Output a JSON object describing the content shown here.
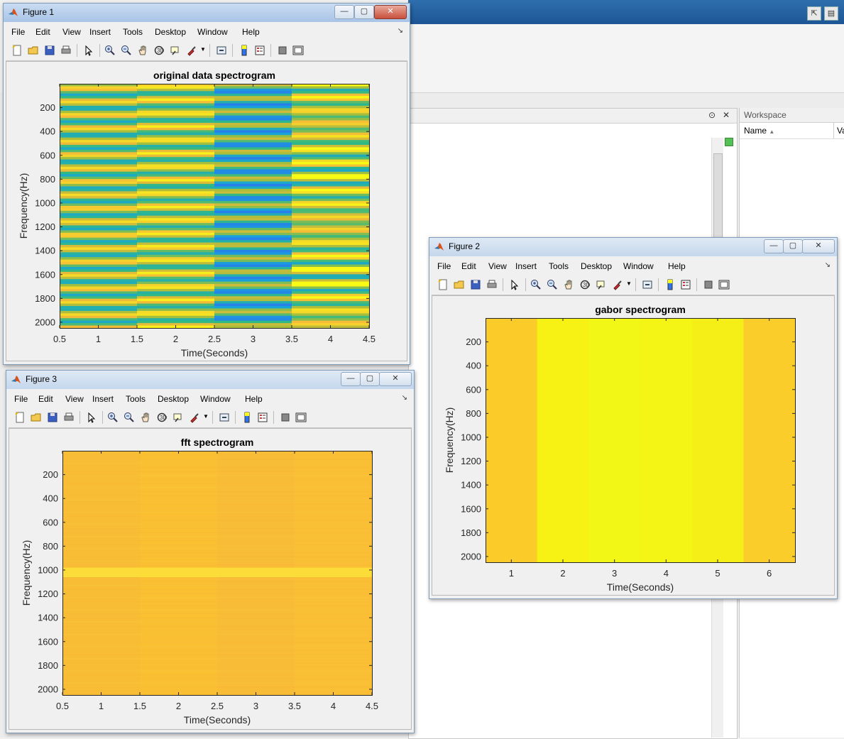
{
  "desktop": {
    "workspace_title": "Workspace",
    "workspace_col_name": "Name",
    "workspace_col_value": "Va"
  },
  "menu": [
    "File",
    "Edit",
    "View",
    "Insert",
    "Tools",
    "Desktop",
    "Window",
    "Help"
  ],
  "figures": [
    {
      "id": "figure1",
      "title": "Figure 1"
    },
    {
      "id": "figure2",
      "title": "Figure 2"
    },
    {
      "id": "figure3",
      "title": "Figure 3"
    }
  ],
  "chart_data": [
    {
      "type": "heatmap",
      "title": "original data spectrogram",
      "xlabel": "Time(Seconds)",
      "ylabel": "Frequency(Hz)",
      "xlim": [
        0.5,
        4.5
      ],
      "ylim": [
        0,
        2048
      ],
      "xticks": [
        0.5,
        1,
        1.5,
        2,
        2.5,
        3,
        3.5,
        4,
        4.5
      ],
      "yticks": [
        200,
        400,
        600,
        800,
        1000,
        1200,
        1400,
        1600,
        1800,
        2000
      ],
      "columns": [
        {
          "x_range": [
            0.5,
            1.5
          ],
          "pattern": "horizontal bands, teal/green"
        },
        {
          "x_range": [
            1.5,
            2.5
          ],
          "pattern": "horizontal bands, green/yellow"
        },
        {
          "x_range": [
            2.5,
            3.5
          ],
          "pattern": "horizontal bands, blue/green"
        },
        {
          "x_range": [
            3.5,
            4.5
          ],
          "pattern": "horizontal bands, yellow/blue"
        }
      ]
    },
    {
      "type": "heatmap",
      "title": "gabor spectrogram",
      "xlabel": "Time(Seconds)",
      "ylabel": "Frequency(Hz)",
      "xlim": [
        0.5,
        6.5
      ],
      "ylim": [
        0,
        2048
      ],
      "xticks": [
        1,
        2,
        3,
        4,
        5,
        6
      ],
      "yticks": [
        200,
        400,
        600,
        800,
        1000,
        1200,
        1400,
        1600,
        1800,
        2000
      ],
      "columns": [
        {
          "x_range": [
            0.5,
            1.5
          ],
          "color": "#fbcb2a"
        },
        {
          "x_range": [
            1.5,
            2.5
          ],
          "color": "#f7f114"
        },
        {
          "x_range": [
            2.5,
            3.5
          ],
          "color": "#f3f716"
        },
        {
          "x_range": [
            3.5,
            4.5
          ],
          "color": "#f4f415"
        },
        {
          "x_range": [
            4.5,
            5.5
          ],
          "color": "#f6ef17"
        },
        {
          "x_range": [
            5.5,
            6.5
          ],
          "color": "#fbcd2b"
        }
      ]
    },
    {
      "type": "heatmap",
      "title": "fft spectrogram",
      "xlabel": "Time(Seconds)",
      "ylabel": "Frequency(Hz)",
      "xlim": [
        0.5,
        4.5
      ],
      "ylim": [
        0,
        2048
      ],
      "xticks": [
        0.5,
        1,
        1.5,
        2,
        2.5,
        3,
        3.5,
        4,
        4.5
      ],
      "yticks": [
        200,
        400,
        600,
        800,
        1000,
        1200,
        1400,
        1600,
        1800,
        2000
      ],
      "columns": [
        {
          "x_range": [
            0.5,
            1.5
          ],
          "color": "#f9bd35"
        },
        {
          "x_range": [
            1.5,
            2.5
          ],
          "color": "#fbc032"
        },
        {
          "x_range": [
            2.5,
            3.5
          ],
          "color": "#f9bc36"
        },
        {
          "x_range": [
            3.5,
            4.5
          ],
          "color": "#fabf34"
        }
      ],
      "highlight_band_hz": [
        980,
        1060
      ]
    }
  ]
}
